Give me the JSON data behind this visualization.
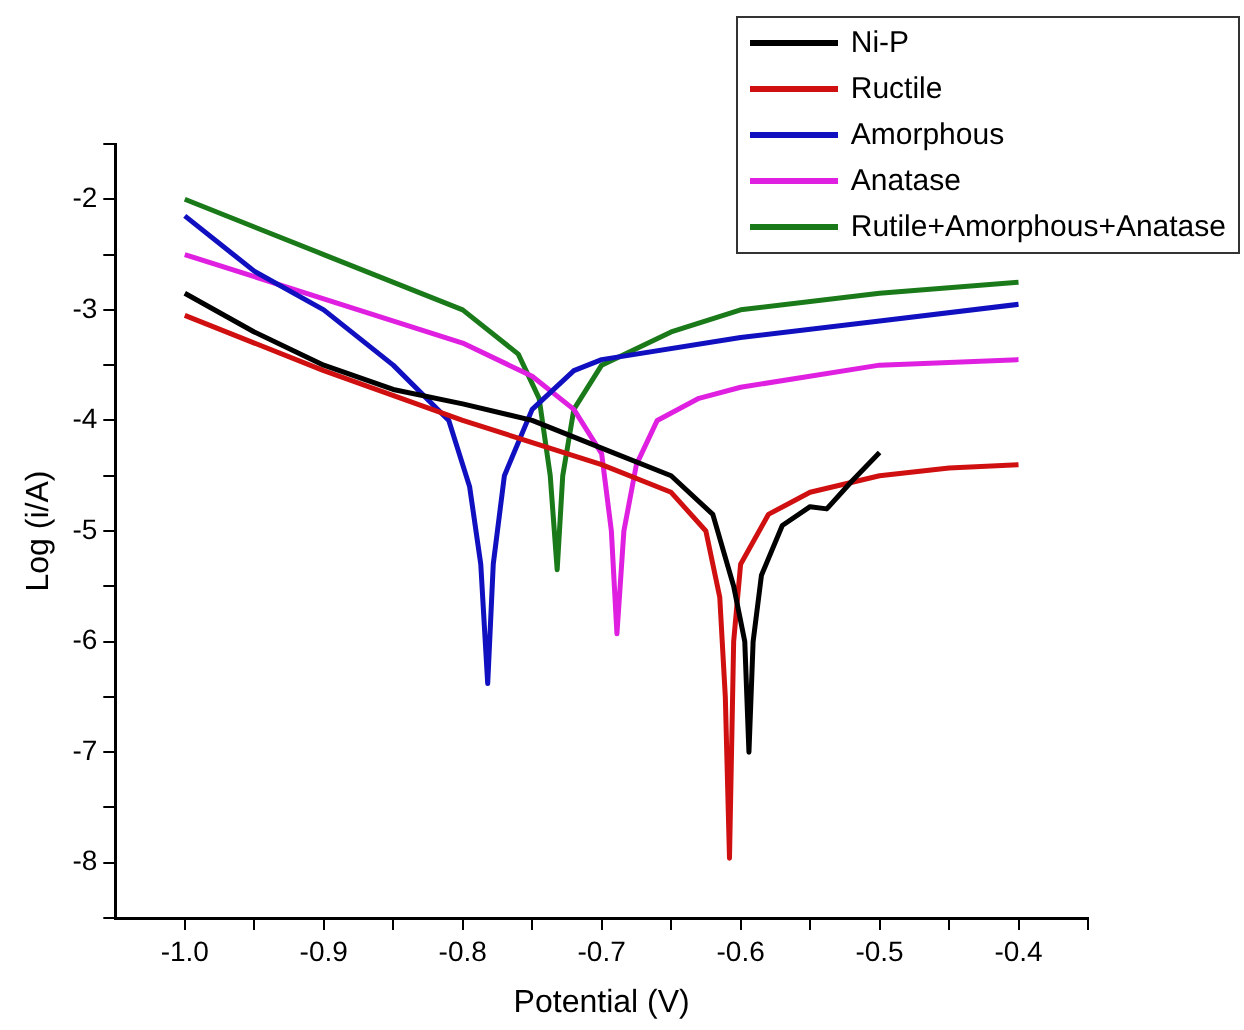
{
  "chart_data": {
    "type": "line",
    "xlabel": "Potential (V)",
    "ylabel": "Log (i/A)",
    "xlim": [
      -1.05,
      -0.35
    ],
    "xticks": [
      {
        "value": -1.0,
        "label": "-1.0"
      },
      {
        "value": -0.95,
        "label": null
      },
      {
        "value": -0.9,
        "label": "-0.9"
      },
      {
        "value": -0.85,
        "label": null
      },
      {
        "value": -0.8,
        "label": "-0.8"
      },
      {
        "value": -0.75,
        "label": null
      },
      {
        "value": -0.7,
        "label": "-0.7"
      },
      {
        "value": -0.65,
        "label": null
      },
      {
        "value": -0.6,
        "label": "-0.6"
      },
      {
        "value": -0.55,
        "label": null
      },
      {
        "value": -0.5,
        "label": "-0.5"
      },
      {
        "value": -0.45,
        "label": null
      },
      {
        "value": -0.4,
        "label": "-0.4"
      },
      {
        "value": -0.35,
        "label": null
      }
    ],
    "ylim": [
      -8.5,
      -1.5
    ],
    "yticks": [
      {
        "value": -8.5,
        "label": null
      },
      -8,
      {
        "value": -7.5,
        "label": null
      },
      -7,
      {
        "value": -6.5,
        "label": null
      },
      -6,
      {
        "value": -5.5,
        "label": null
      },
      -5,
      {
        "value": -4.5,
        "label": null
      },
      -4,
      {
        "value": -3.5,
        "label": null
      },
      -3,
      {
        "value": -2.5,
        "label": null
      },
      -2,
      {
        "value": -1.5,
        "label": null
      }
    ],
    "grid": false,
    "legend": "top right",
    "marker": "none",
    "line_style": "solid",
    "series": [
      {
        "name": "Ni-P",
        "color": "#000000",
        "x": [
          -1.0,
          -0.95,
          -0.9,
          -0.85,
          -0.8,
          -0.75,
          -0.7,
          -0.65,
          -0.62,
          -0.605,
          -0.597,
          -0.594,
          -0.591,
          -0.585,
          -0.57,
          -0.55,
          -0.538,
          -0.52,
          -0.5
        ],
        "values": [
          -2.85,
          -3.2,
          -3.5,
          -3.72,
          -3.85,
          -4.0,
          -4.25,
          -4.5,
          -4.85,
          -5.5,
          -6.0,
          -7.0,
          -6.0,
          -5.4,
          -4.95,
          -4.78,
          -4.8,
          -4.55,
          -4.29
        ]
      },
      {
        "name": "Ructile",
        "color": "#d01010",
        "x": [
          -1.0,
          -0.9,
          -0.8,
          -0.7,
          -0.65,
          -0.625,
          -0.615,
          -0.611,
          -0.608,
          -0.605,
          -0.6,
          -0.58,
          -0.55,
          -0.5,
          -0.45,
          -0.4
        ],
        "values": [
          -3.05,
          -3.55,
          -4.0,
          -4.4,
          -4.65,
          -5.0,
          -5.6,
          -6.5,
          -7.96,
          -6.0,
          -5.3,
          -4.85,
          -4.65,
          -4.5,
          -4.43,
          -4.4
        ]
      },
      {
        "name": "Amorphous",
        "color": "#1010c0",
        "x": [
          -1.0,
          -0.95,
          -0.9,
          -0.85,
          -0.81,
          -0.795,
          -0.787,
          -0.782,
          -0.778,
          -0.77,
          -0.75,
          -0.72,
          -0.7,
          -0.6,
          -0.5,
          -0.4
        ],
        "values": [
          -2.15,
          -2.65,
          -3.0,
          -3.5,
          -4.0,
          -4.6,
          -5.3,
          -6.38,
          -5.3,
          -4.5,
          -3.9,
          -3.55,
          -3.45,
          -3.25,
          -3.1,
          -2.95
        ]
      },
      {
        "name": "Anatase",
        "color": "#e020e0",
        "x": [
          -1.0,
          -0.9,
          -0.8,
          -0.75,
          -0.72,
          -0.7,
          -0.693,
          -0.689,
          -0.684,
          -0.675,
          -0.66,
          -0.63,
          -0.6,
          -0.5,
          -0.4
        ],
        "values": [
          -2.5,
          -2.9,
          -3.3,
          -3.6,
          -3.9,
          -4.3,
          -5.0,
          -5.93,
          -5.0,
          -4.4,
          -4.0,
          -3.8,
          -3.7,
          -3.5,
          -3.45
        ]
      },
      {
        "name": "Rutile+Amorphous+Anatase",
        "color": "#1a7a1a",
        "x": [
          -1.0,
          -0.9,
          -0.8,
          -0.76,
          -0.745,
          -0.737,
          -0.732,
          -0.728,
          -0.72,
          -0.7,
          -0.65,
          -0.6,
          -0.5,
          -0.4
        ],
        "values": [
          -2.0,
          -2.5,
          -3.0,
          -3.4,
          -3.8,
          -4.5,
          -5.35,
          -4.5,
          -3.9,
          -3.5,
          -3.2,
          -3.0,
          -2.85,
          -2.75
        ]
      }
    ]
  }
}
